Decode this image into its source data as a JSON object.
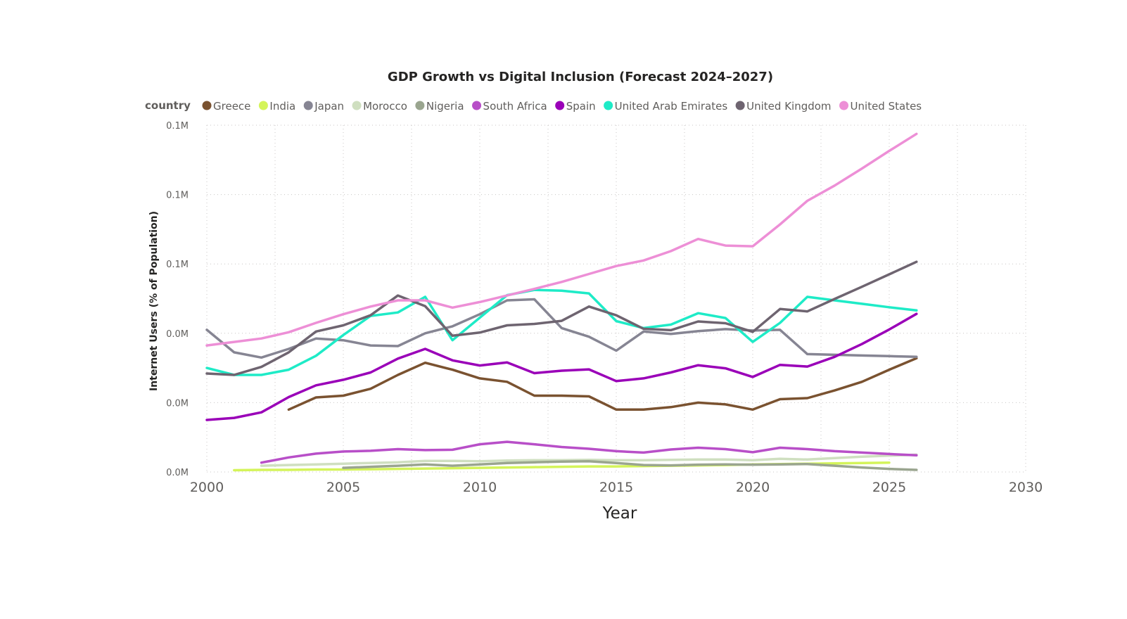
{
  "chart_data": {
    "type": "line",
    "title": "GDP Growth vs Digital Inclusion (Forecast 2024–2027)",
    "xlabel": "Year",
    "ylabel": "Internet Users (% of Population)",
    "legend_title": "country",
    "legend_position": "top-left",
    "grid": true,
    "xlim": [
      2000,
      2030
    ],
    "xticks": [
      "2000",
      "2005",
      "2010",
      "2015",
      "2020",
      "2025",
      "2030"
    ],
    "ylim": [
      0,
      100
    ],
    "yticks": [
      {
        "value": 0,
        "label": "0.0M"
      },
      {
        "value": 20,
        "label": "0.0M"
      },
      {
        "value": 40,
        "label": "0.0M"
      },
      {
        "value": 60,
        "label": "0.1M"
      },
      {
        "value": 80,
        "label": "0.1M"
      },
      {
        "value": 100,
        "label": "0.1M"
      }
    ],
    "series": [
      {
        "name": "Greece",
        "color": "#7a5230",
        "x": [
          2003,
          2004,
          2005,
          2006,
          2007,
          2008,
          2009,
          2010,
          2011,
          2012,
          2013,
          2014,
          2015,
          2016,
          2017,
          2018,
          2019,
          2020,
          2021,
          2022,
          2023,
          2024,
          2025,
          2026
        ],
        "values": [
          18,
          21.5,
          22,
          24,
          28,
          31.5,
          29.5,
          27,
          26,
          22,
          22,
          21.8,
          18,
          18,
          18.7,
          20,
          19.5,
          18,
          21,
          21.3,
          23.5,
          26,
          29.5,
          32.8
        ]
      },
      {
        "name": "India",
        "color": "#d4f45a",
        "x": [
          2001,
          2002,
          2003,
          2004,
          2005,
          2006,
          2007,
          2008,
          2009,
          2010,
          2011,
          2012,
          2013,
          2014,
          2015,
          2016,
          2017,
          2018,
          2019,
          2020,
          2021,
          2022,
          2023,
          2024,
          2025
        ],
        "values": [
          0.5,
          0.6,
          0.6,
          0.7,
          0.7,
          0.8,
          0.9,
          1,
          1.1,
          1.2,
          1.3,
          1.4,
          1.5,
          1.6,
          1.6,
          1.7,
          1.8,
          1.9,
          2,
          2.2,
          2.3,
          2.4,
          2.5,
          2.6,
          2.7
        ]
      },
      {
        "name": "Japan",
        "color": "#868593",
        "x": [
          2000,
          2001,
          2002,
          2003,
          2004,
          2005,
          2006,
          2007,
          2008,
          2009,
          2010,
          2011,
          2012,
          2013,
          2014,
          2015,
          2016,
          2017,
          2018,
          2019,
          2020,
          2021,
          2022,
          2023,
          2024,
          2025,
          2026
        ],
        "values": [
          41,
          34.5,
          33,
          35.5,
          38.5,
          38,
          36.5,
          36.3,
          40,
          42,
          45.5,
          49.5,
          49.8,
          41.5,
          39,
          35,
          40.5,
          39.8,
          40.6,
          41.2,
          40.8,
          41,
          34,
          33.8,
          33.6,
          33.4,
          33.2
        ]
      },
      {
        "name": "Morocco",
        "color": "#cfdfc0",
        "x": [
          2002,
          2003,
          2004,
          2005,
          2006,
          2007,
          2008,
          2009,
          2010,
          2011,
          2012,
          2013,
          2014,
          2015,
          2016,
          2017,
          2018,
          2019,
          2020,
          2021,
          2022,
          2023,
          2024,
          2025,
          2026
        ],
        "values": [
          1.8,
          2,
          2.2,
          2.4,
          2.6,
          2.8,
          3.2,
          3.2,
          3.1,
          3.3,
          3.4,
          3.4,
          3.5,
          3.4,
          3.4,
          3.5,
          3.6,
          3.6,
          3.4,
          3.8,
          3.6,
          4,
          4.4,
          4.7,
          5
        ]
      },
      {
        "name": "Nigeria",
        "color": "#9aa58f",
        "x": [
          2005,
          2006,
          2007,
          2008,
          2009,
          2010,
          2011,
          2012,
          2013,
          2014,
          2015,
          2016,
          2017,
          2018,
          2019,
          2020,
          2021,
          2022,
          2023,
          2024,
          2025,
          2026
        ],
        "values": [
          1.2,
          1.5,
          1.8,
          2.2,
          1.8,
          2.2,
          2.6,
          2.8,
          3,
          3.1,
          2.6,
          2,
          1.9,
          2.1,
          2.2,
          2.1,
          2.2,
          2.3,
          1.8,
          1.3,
          0.9,
          0.6
        ]
      },
      {
        "name": "South Africa",
        "color": "#b84fc8",
        "x": [
          2002,
          2003,
          2004,
          2005,
          2006,
          2007,
          2008,
          2009,
          2010,
          2011,
          2012,
          2013,
          2014,
          2015,
          2016,
          2017,
          2018,
          2019,
          2020,
          2021,
          2022,
          2023,
          2024,
          2025,
          2026
        ],
        "values": [
          2.7,
          4.2,
          5.3,
          5.9,
          6.1,
          6.6,
          6.3,
          6.4,
          8,
          8.7,
          8,
          7.2,
          6.7,
          6,
          5.6,
          6.5,
          7,
          6.6,
          5.7,
          7,
          6.6,
          6,
          5.6,
          5.2,
          4.8
        ]
      },
      {
        "name": "Spain",
        "color": "#9a00b8",
        "x": [
          2000,
          2001,
          2002,
          2003,
          2004,
          2005,
          2006,
          2007,
          2008,
          2009,
          2010,
          2011,
          2012,
          2013,
          2014,
          2015,
          2016,
          2017,
          2018,
          2019,
          2020,
          2021,
          2022,
          2023,
          2024,
          2025,
          2026
        ],
        "values": [
          15,
          15.6,
          17.2,
          21.6,
          25,
          26.6,
          28.7,
          32.7,
          35.5,
          32.2,
          30.7,
          31.6,
          28.5,
          29.2,
          29.6,
          26.2,
          27,
          28.7,
          30.8,
          29.9,
          27.4,
          30.9,
          30.4,
          33.2,
          36.9,
          41.1,
          45.6
        ]
      },
      {
        "name": "United Arab Emirates",
        "color": "#1eebc7",
        "x": [
          2000,
          2001,
          2002,
          2003,
          2004,
          2005,
          2006,
          2007,
          2008,
          2009,
          2010,
          2011,
          2012,
          2013,
          2014,
          2015,
          2016,
          2017,
          2018,
          2019,
          2020,
          2021,
          2022,
          2023,
          2024,
          2025,
          2026
        ],
        "values": [
          30,
          28,
          28,
          29.5,
          33.5,
          39.5,
          45,
          46,
          50.5,
          38,
          44.5,
          51,
          52.5,
          52.3,
          51.5,
          43.5,
          41.5,
          42.5,
          45.8,
          44.4,
          37.5,
          43,
          50.5,
          49.5,
          48.5,
          47.5,
          46.6
        ]
      },
      {
        "name": "United Kingdom",
        "color": "#6e6470",
        "x": [
          2000,
          2001,
          2002,
          2003,
          2004,
          2005,
          2006,
          2007,
          2008,
          2009,
          2010,
          2011,
          2012,
          2013,
          2014,
          2015,
          2016,
          2017,
          2018,
          2019,
          2020,
          2021,
          2022,
          2023,
          2024,
          2025,
          2026
        ],
        "values": [
          28.4,
          28,
          30.3,
          34.5,
          40.5,
          42.3,
          45.2,
          50.9,
          47.8,
          39.3,
          40.2,
          42.3,
          42.7,
          43.6,
          47.7,
          45.2,
          41.3,
          40.9,
          43.4,
          42.9,
          40.4,
          47,
          46.3,
          49.9,
          53.4,
          57,
          60.6
        ]
      },
      {
        "name": "United States",
        "color": "#ed8fd6",
        "x": [
          2000,
          2001,
          2002,
          2003,
          2004,
          2005,
          2006,
          2007,
          2008,
          2009,
          2010,
          2011,
          2012,
          2013,
          2014,
          2015,
          2016,
          2017,
          2018,
          2019,
          2020,
          2021,
          2022,
          2023,
          2024,
          2025,
          2026
        ],
        "values": [
          36.5,
          37.5,
          38.5,
          40.3,
          43,
          45.5,
          47.7,
          49.5,
          49.5,
          47.4,
          49,
          50.9,
          52.8,
          54.8,
          57.1,
          59.4,
          61,
          63.7,
          67.2,
          65.3,
          65.1,
          71.4,
          78.2,
          82.6,
          87.5,
          92.6,
          97.5
        ]
      }
    ]
  }
}
